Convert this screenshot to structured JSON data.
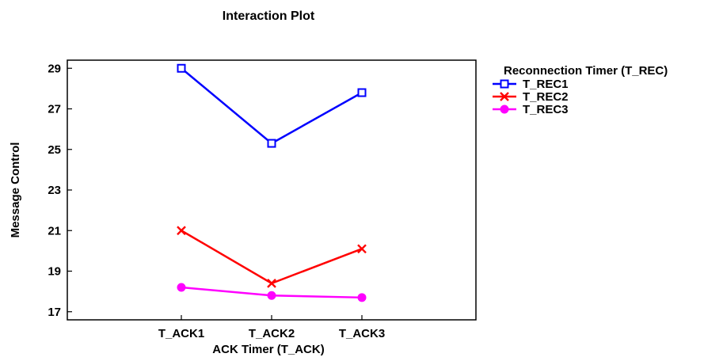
{
  "chart_data": {
    "type": "line",
    "title": "Interaction Plot",
    "xlabel": "ACK Timer (T_ACK)",
    "ylabel": "Message Control",
    "categories": [
      "T_ACK1",
      "T_ACK2",
      "T_ACK3"
    ],
    "yticks": [
      "29",
      "27",
      "25",
      "23",
      "21",
      "19",
      "17"
    ],
    "ylim": [
      16.6,
      29.4
    ],
    "grid": false,
    "legend": {
      "title": "Reconnection Timer (T_REC)",
      "placement": "right"
    },
    "series": [
      {
        "name": "T_REC1",
        "values": [
          29.0,
          25.3,
          27.8
        ],
        "color": "#0000ff",
        "marker": "square-open"
      },
      {
        "name": "T_REC2",
        "values": [
          21.0,
          18.4,
          20.1
        ],
        "color": "#ff0000",
        "marker": "x"
      },
      {
        "name": "T_REC3",
        "values": [
          18.2,
          17.8,
          17.7
        ],
        "color": "#ff00ff",
        "marker": "circle-filled"
      }
    ]
  }
}
